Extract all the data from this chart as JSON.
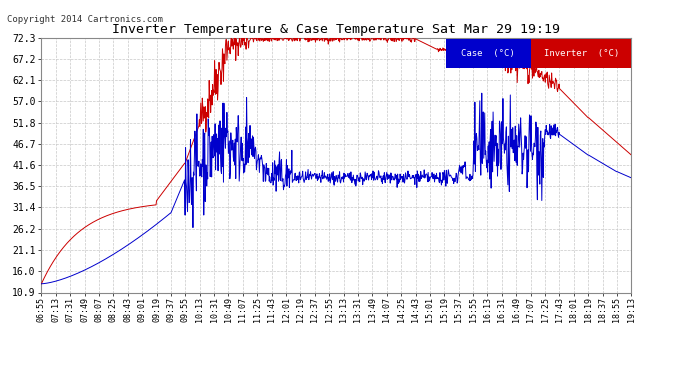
{
  "title": "Inverter Temperature & Case Temperature Sat Mar 29 19:19",
  "copyright": "Copyright 2014 Cartronics.com",
  "bg_color": "#ffffff",
  "plot_bg_color": "#ffffff",
  "grid_color": "#c8c8c8",
  "case_color": "#0000cc",
  "inverter_color": "#cc0000",
  "ylim": [
    10.9,
    72.3
  ],
  "yticks": [
    10.9,
    16.0,
    21.1,
    26.2,
    31.4,
    36.5,
    41.6,
    46.7,
    51.8,
    57.0,
    62.1,
    67.2,
    72.3
  ],
  "legend_case_label": "Case  (°C)",
  "legend_inverter_label": "Inverter  (°C)",
  "xtick_labels": [
    "06:55",
    "07:13",
    "07:31",
    "07:49",
    "08:07",
    "08:25",
    "08:43",
    "09:01",
    "09:19",
    "09:37",
    "09:55",
    "10:13",
    "10:31",
    "10:49",
    "11:07",
    "11:25",
    "11:43",
    "12:01",
    "12:19",
    "12:37",
    "12:55",
    "13:13",
    "13:31",
    "13:49",
    "14:07",
    "14:25",
    "14:43",
    "15:01",
    "15:19",
    "15:37",
    "15:55",
    "16:13",
    "16:31",
    "16:49",
    "17:07",
    "17:25",
    "17:43",
    "18:01",
    "18:19",
    "18:37",
    "18:55",
    "19:13"
  ]
}
